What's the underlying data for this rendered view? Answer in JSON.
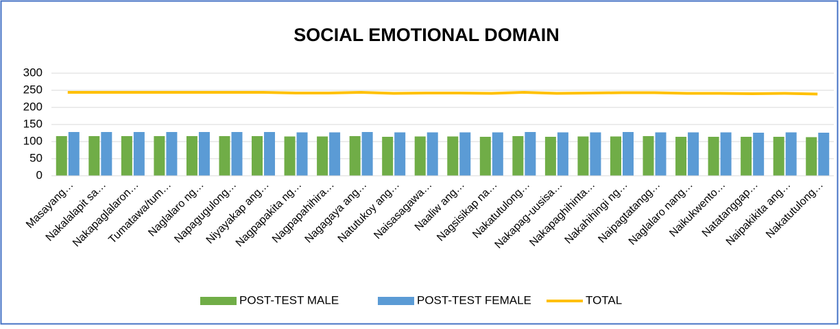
{
  "chart_data": {
    "type": "bar",
    "title": "SOCIAL EMOTIONAL DOMAIN",
    "categories": [
      "Masayang…",
      "Nakalalapit sa…",
      "Nakapaglalaron…",
      "Tumatawa/tum…",
      "Naglalaro ng…",
      "Napagugulong…",
      "Niyayakap ang…",
      "Nagpapakita ng…",
      "Nagpapahihira…",
      "Nagagaya ang…",
      "Natutukoy ang…",
      "Naisasagawa…",
      "Naaliw ang…",
      "Nagsisikap na…",
      "Nakatutulong…",
      "Nakapag-uusisa…",
      "Nakapaghihinta…",
      "Nakahihingi ng…",
      "Naipagtatangg…",
      "Naglalaro nang…",
      "Naikukwento…",
      "Natatanggap…",
      "Naipakikita ang…",
      "Nakatutulong…"
    ],
    "series": [
      {
        "name": "POST-TEST MALE",
        "type": "bar",
        "color": "#70ad47",
        "values": [
          116,
          116,
          116,
          116,
          116,
          116,
          116,
          115,
          115,
          116,
          114,
          115,
          115,
          114,
          116,
          114,
          115,
          115,
          116,
          114,
          114,
          114,
          114,
          113
        ]
      },
      {
        "name": "POST-TEST FEMALE",
        "type": "bar",
        "color": "#5b9bd5",
        "values": [
          128,
          128,
          128,
          128,
          128,
          128,
          128,
          127,
          127,
          128,
          127,
          127,
          127,
          127,
          128,
          127,
          127,
          128,
          127,
          127,
          127,
          126,
          127,
          126
        ]
      },
      {
        "name": "TOTAL",
        "type": "line",
        "color": "#ffc000",
        "values": [
          244,
          244,
          244,
          244,
          244,
          244,
          244,
          242,
          242,
          244,
          241,
          242,
          242,
          241,
          244,
          241,
          242,
          243,
          243,
          241,
          241,
          240,
          241,
          239
        ]
      }
    ],
    "ylim": [
      0,
      300
    ],
    "yticks": [
      0,
      50,
      100,
      150,
      200,
      250,
      300
    ],
    "grid": true,
    "legend": "bottom"
  }
}
